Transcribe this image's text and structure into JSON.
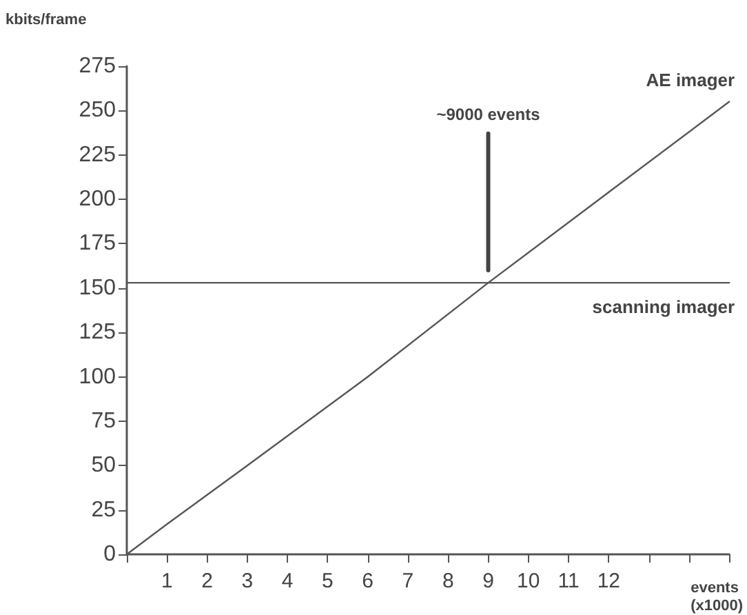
{
  "chart_data": {
    "type": "line",
    "xlabel": "events\n(x1000)",
    "ylabel": "kbits/frame",
    "xlim": [
      0,
      15
    ],
    "ylim": [
      0,
      275
    ],
    "xticks": [
      {
        "value": 0,
        "label": null
      },
      1,
      2,
      3,
      4,
      5,
      6,
      7,
      8,
      9,
      10,
      11,
      12,
      {
        "value": 13,
        "label": null
      },
      {
        "value": 14,
        "label": null
      },
      {
        "value": 15,
        "label": null
      }
    ],
    "yticks": [
      0,
      25,
      50,
      75,
      100,
      125,
      150,
      175,
      200,
      225,
      250,
      275
    ],
    "series": [
      {
        "name": "AE imager",
        "color": "#555555",
        "x": [
          0,
          1,
          3,
          6,
          9,
          12,
          15
        ],
        "values": [
          0,
          17,
          50,
          100,
          153,
          204,
          255
        ]
      },
      {
        "name": "scanning imager",
        "color": "#555555",
        "x": [
          0,
          15
        ],
        "values": [
          153,
          153
        ]
      },
      {
        "color": "#444444",
        "x": [
          9,
          9
        ],
        "values": [
          160,
          237
        ],
        "line_style": "solid"
      }
    ],
    "annotations": [
      "~9000 events"
    ],
    "grid": false,
    "legend": false,
    "marker": "none",
    "line_style": "solid"
  }
}
